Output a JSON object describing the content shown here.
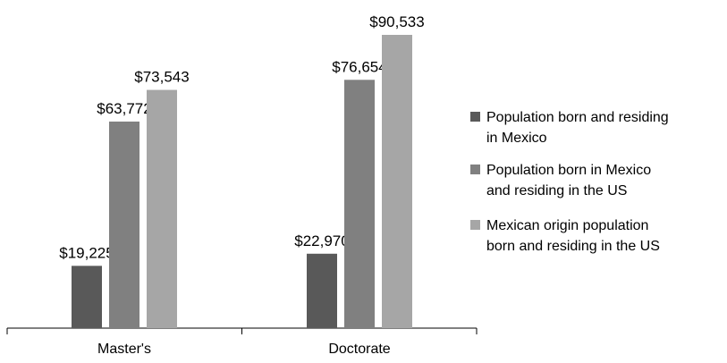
{
  "chart_data": {
    "type": "bar",
    "categories": [
      "Master's",
      "Doctorate"
    ],
    "series": [
      {
        "name": "Population born and residing in Mexico",
        "values": [
          19225,
          22970
        ],
        "labels": [
          "$19,225",
          "$22,970"
        ],
        "color": "#595959"
      },
      {
        "name": "Population born in Mexico and residing in the US",
        "values": [
          63772,
          76654
        ],
        "labels": [
          "$63,772",
          "$76,654"
        ],
        "color": "#808080"
      },
      {
        "name": "Mexican origin population born and residing in the US",
        "values": [
          73543,
          90533
        ],
        "labels": [
          "$73,543",
          "$90,533"
        ],
        "color": "#a6a6a6"
      }
    ],
    "legend_lines": [
      [
        "Population born and residing",
        "in Mexico"
      ],
      [
        "Population born in Mexico",
        "and residing in the US"
      ],
      [
        "Mexican origin population",
        "born and residing in the US"
      ]
    ],
    "title": "",
    "xlabel": "",
    "ylabel": "",
    "ylim": [
      0,
      100000
    ],
    "grid": false,
    "legend_position": "right"
  }
}
